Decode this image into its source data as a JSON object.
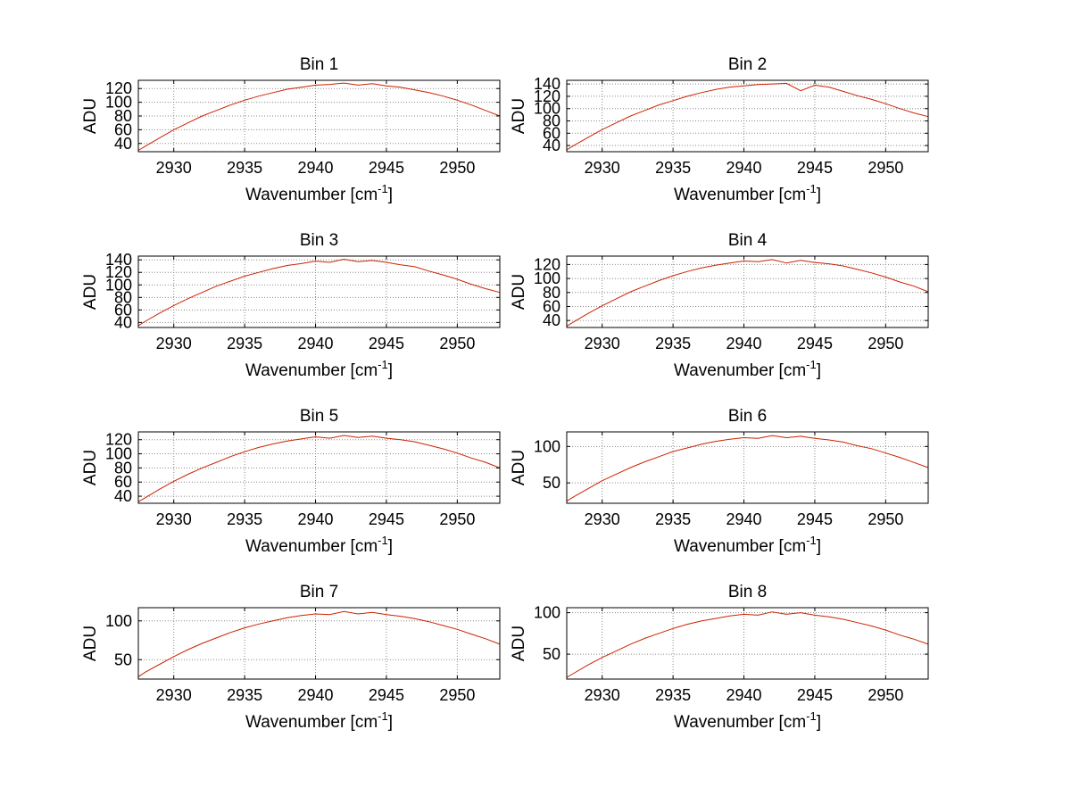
{
  "figure": {
    "background": "#ffffff",
    "grid_color": "#888888",
    "axis_color": "#000000"
  },
  "chart_data": {
    "type": "line",
    "xlabel_pre": "Wavenumber [cm",
    "xlabel_sup": "-1",
    "xlabel_post": "]",
    "ylabel": "ADU",
    "line_color": "#cc2200",
    "grid": true,
    "legend": "none",
    "xlim": [
      2927.5,
      2953
    ],
    "xticks": [
      2930,
      2935,
      2940,
      2945,
      2950
    ],
    "x": [
      2927.5,
      2928,
      2929,
      2930,
      2931,
      2932,
      2933,
      2934,
      2935,
      2936,
      2937,
      2938,
      2939,
      2940,
      2941,
      2942,
      2943,
      2944,
      2945,
      2946,
      2947,
      2948,
      2949,
      2950,
      2951,
      2952,
      2953
    ],
    "series": [
      {
        "name": "Bin 1",
        "ylim": [
          28,
          132
        ],
        "yticks": [
          40,
          60,
          80,
          100,
          120
        ],
        "values": [
          30,
          36,
          48,
          60,
          70,
          80,
          88,
          96,
          103,
          109,
          114,
          119,
          122,
          125,
          126,
          128,
          125,
          127,
          124,
          122,
          118,
          114,
          109,
          103,
          96,
          88,
          80
        ]
      },
      {
        "name": "Bin 2",
        "ylim": [
          30,
          146
        ],
        "yticks": [
          40,
          60,
          80,
          100,
          120,
          140
        ],
        "values": [
          33,
          40,
          53,
          66,
          77,
          88,
          97,
          106,
          113,
          120,
          126,
          131,
          135,
          137,
          139,
          140,
          141,
          129,
          138,
          135,
          128,
          121,
          115,
          108,
          100,
          93,
          87
        ]
      },
      {
        "name": "Bin 3",
        "ylim": [
          32,
          146
        ],
        "yticks": [
          40,
          60,
          80,
          100,
          120,
          140
        ],
        "values": [
          35,
          42,
          55,
          67,
          78,
          88,
          98,
          106,
          114,
          120,
          126,
          131,
          134,
          138,
          136,
          141,
          137,
          139,
          136,
          132,
          129,
          122,
          116,
          109,
          101,
          94,
          88
        ]
      },
      {
        "name": "Bin 4",
        "ylim": [
          30,
          132
        ],
        "yticks": [
          40,
          60,
          80,
          100,
          120
        ],
        "values": [
          32,
          38,
          50,
          61,
          71,
          81,
          89,
          97,
          104,
          110,
          115,
          119,
          122,
          125,
          124,
          127,
          122,
          126,
          123,
          121,
          118,
          113,
          108,
          102,
          95,
          89,
          81
        ]
      },
      {
        "name": "Bin 5",
        "ylim": [
          30,
          131
        ],
        "yticks": [
          40,
          60,
          80,
          100,
          120
        ],
        "values": [
          32,
          38,
          50,
          61,
          71,
          80,
          88,
          96,
          103,
          109,
          114,
          118,
          121,
          124,
          122,
          126,
          123,
          125,
          122,
          120,
          117,
          112,
          107,
          101,
          94,
          88,
          80
        ]
      },
      {
        "name": "Bin 6",
        "ylim": [
          22,
          120
        ],
        "yticks": [
          50,
          100
        ],
        "values": [
          25,
          31,
          42,
          53,
          62,
          71,
          79,
          86,
          93,
          98,
          103,
          107,
          110,
          112,
          111,
          115,
          112,
          114,
          111,
          109,
          106,
          101,
          97,
          91,
          85,
          78,
          71
        ]
      },
      {
        "name": "Bin 7",
        "ylim": [
          25,
          117
        ],
        "yticks": [
          50,
          100
        ],
        "values": [
          28,
          34,
          44,
          54,
          63,
          71,
          78,
          85,
          91,
          96,
          100,
          104,
          107,
          109,
          108,
          112,
          109,
          111,
          108,
          106,
          103,
          99,
          94,
          89,
          83,
          77,
          70
        ]
      },
      {
        "name": "Bin 8",
        "ylim": [
          20,
          106
        ],
        "yticks": [
          50,
          100
        ],
        "values": [
          22,
          27,
          37,
          46,
          54,
          62,
          69,
          75,
          81,
          86,
          90,
          93,
          96,
          98,
          97,
          101,
          98,
          100,
          97,
          95,
          92,
          88,
          84,
          79,
          73,
          68,
          62
        ]
      }
    ]
  }
}
